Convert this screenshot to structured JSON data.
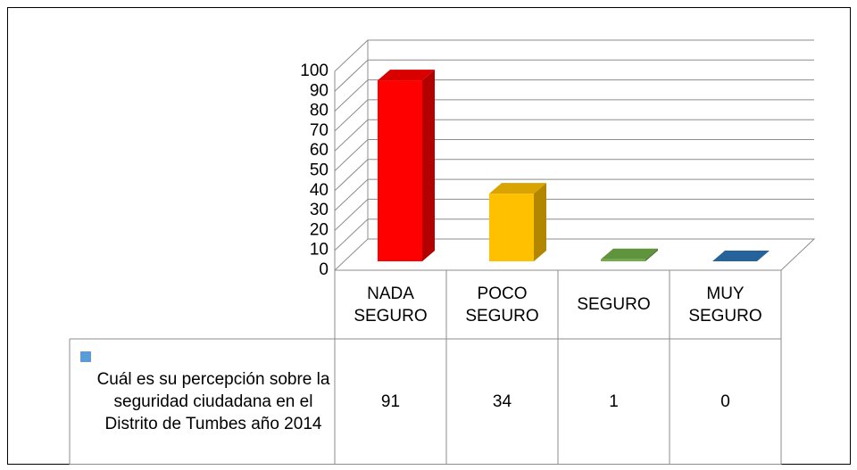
{
  "chart_data": {
    "type": "bar",
    "categories": [
      "NADA SEGURO",
      "POCO SEGURO",
      "SEGURO",
      "MUY SEGURO"
    ],
    "series": [
      {
        "name": "Cuál es su percepción sobre la seguridad ciudadana en el Distrito de Tumbes año 2014",
        "color": "#5b9bd5",
        "values": [
          91,
          34,
          1,
          0
        ]
      }
    ],
    "colors": [
      "#ff0000",
      "#ffc000",
      "#70ad47",
      "#2e75b6"
    ],
    "ylim": [
      0,
      100
    ],
    "yticks": [
      0,
      10,
      20,
      30,
      40,
      50,
      60,
      70,
      80,
      90,
      100
    ],
    "grid": true,
    "data_table": true
  }
}
